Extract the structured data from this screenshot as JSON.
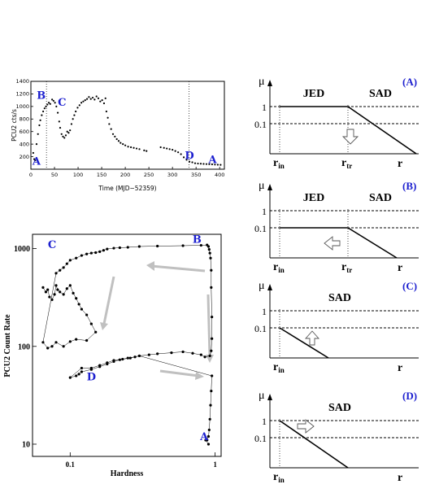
{
  "charts": [
    {
      "chart_data": {
        "type": "scatter",
        "xlabel": "Time (MJD−52359)",
        "ylabel": "PCU2 cts/s",
        "xlim": [
          0,
          410
        ],
        "ylim": [
          0,
          1400
        ],
        "xticks": [
          0,
          50,
          100,
          150,
          200,
          250,
          300,
          350,
          400
        ],
        "yticks": [
          200,
          400,
          600,
          800,
          1000,
          1200,
          1400
        ],
        "grid": false,
        "points": [
          [
            5,
            260
          ],
          [
            7,
            160
          ],
          [
            9,
            140
          ],
          [
            12,
            400
          ],
          [
            15,
            560
          ],
          [
            18,
            700
          ],
          [
            20,
            780
          ],
          [
            23,
            860
          ],
          [
            26,
            920
          ],
          [
            29,
            970
          ],
          [
            32,
            1000
          ],
          [
            35,
            1030
          ],
          [
            38,
            1060
          ],
          [
            41,
            1040
          ],
          [
            45,
            1110
          ],
          [
            48,
            1090
          ],
          [
            51,
            1060
          ],
          [
            54,
            1000
          ],
          [
            57,
            900
          ],
          [
            60,
            760
          ],
          [
            62,
            660
          ],
          [
            65,
            560
          ],
          [
            68,
            520
          ],
          [
            71,
            500
          ],
          [
            74,
            540
          ],
          [
            77,
            600
          ],
          [
            80,
            580
          ],
          [
            83,
            620
          ],
          [
            86,
            720
          ],
          [
            89,
            800
          ],
          [
            92,
            860
          ],
          [
            95,
            920
          ],
          [
            99,
            980
          ],
          [
            103,
            1020
          ],
          [
            107,
            1060
          ],
          [
            111,
            1080
          ],
          [
            115,
            1100
          ],
          [
            119,
            1120
          ],
          [
            123,
            1150
          ],
          [
            127,
            1120
          ],
          [
            131,
            1140
          ],
          [
            135,
            1110
          ],
          [
            139,
            1160
          ],
          [
            143,
            1130
          ],
          [
            147,
            1080
          ],
          [
            151,
            1100
          ],
          [
            155,
            1050
          ],
          [
            158,
            1130
          ],
          [
            160,
            920
          ],
          [
            163,
            820
          ],
          [
            166,
            720
          ],
          [
            170,
            640
          ],
          [
            174,
            560
          ],
          [
            178,
            520
          ],
          [
            182,
            480
          ],
          [
            186,
            450
          ],
          [
            190,
            420
          ],
          [
            195,
            400
          ],
          [
            200,
            380
          ],
          [
            206,
            360
          ],
          [
            212,
            350
          ],
          [
            218,
            340
          ],
          [
            224,
            330
          ],
          [
            230,
            320
          ],
          [
            240,
            300
          ],
          [
            245,
            290
          ],
          [
            275,
            350
          ],
          [
            282,
            340
          ],
          [
            288,
            330
          ],
          [
            294,
            320
          ],
          [
            300,
            310
          ],
          [
            306,
            290
          ],
          [
            312,
            270
          ],
          [
            318,
            240
          ],
          [
            324,
            190
          ],
          [
            330,
            150
          ],
          [
            336,
            120
          ],
          [
            342,
            110
          ],
          [
            348,
            95
          ],
          [
            354,
            90
          ],
          [
            360,
            88
          ],
          [
            366,
            85
          ],
          [
            372,
            82
          ],
          [
            378,
            80
          ],
          [
            384,
            78
          ],
          [
            390,
            74
          ],
          [
            396,
            72
          ],
          [
            402,
            70
          ]
        ],
        "vlines": [
          33,
          335
        ],
        "annotations": [
          {
            "label": "A",
            "x": 12,
            "y": 70
          },
          {
            "label": "B",
            "x": 22,
            "y": 1120
          },
          {
            "label": "C",
            "x": 66,
            "y": 1010
          },
          {
            "label": "D",
            "x": 336,
            "y": 160
          },
          {
            "label": "A",
            "x": 385,
            "y": 95
          }
        ]
      }
    },
    {
      "chart_data": {
        "type": "scatter",
        "xlabel": "Hardness",
        "ylabel": "PCU2 Count Rate",
        "xscale": "log",
        "yscale": "log",
        "xlim": [
          0.055,
          1.1
        ],
        "ylim": [
          7.5,
          1400
        ],
        "yticks": [
          10,
          100,
          1000
        ],
        "xticks": [
          0.1,
          1
        ],
        "points": [
          [
            0.065,
            400
          ],
          [
            0.068,
            360
          ],
          [
            0.07,
            380
          ],
          [
            0.072,
            320
          ],
          [
            0.075,
            300
          ],
          [
            0.078,
            340
          ],
          [
            0.08,
            420
          ],
          [
            0.082,
            380
          ],
          [
            0.085,
            360
          ],
          [
            0.09,
            340
          ],
          [
            0.095,
            390
          ],
          [
            0.1,
            420
          ],
          [
            0.105,
            350
          ],
          [
            0.11,
            310
          ],
          [
            0.115,
            270
          ],
          [
            0.12,
            240
          ],
          [
            0.13,
            210
          ],
          [
            0.14,
            170
          ],
          [
            0.15,
            140
          ],
          [
            0.13,
            115
          ],
          [
            0.11,
            118
          ],
          [
            0.1,
            112
          ],
          [
            0.09,
            100
          ],
          [
            0.08,
            110
          ],
          [
            0.075,
            100
          ],
          [
            0.07,
            96
          ],
          [
            0.065,
            110
          ],
          [
            0.08,
            560
          ],
          [
            0.085,
            600
          ],
          [
            0.09,
            640
          ],
          [
            0.095,
            700
          ],
          [
            0.1,
            760
          ],
          [
            0.11,
            800
          ],
          [
            0.12,
            850
          ],
          [
            0.13,
            880
          ],
          [
            0.14,
            900
          ],
          [
            0.15,
            910
          ],
          [
            0.16,
            930
          ],
          [
            0.17,
            960
          ],
          [
            0.18,
            990
          ],
          [
            0.2,
            1010
          ],
          [
            0.22,
            1020
          ],
          [
            0.25,
            1030
          ],
          [
            0.3,
            1050
          ],
          [
            0.4,
            1060
          ],
          [
            0.6,
            1070
          ],
          [
            0.8,
            1080
          ],
          [
            0.88,
            1090
          ],
          [
            0.9,
            1050
          ],
          [
            0.91,
            980
          ],
          [
            0.92,
            900
          ],
          [
            0.93,
            800
          ],
          [
            0.94,
            600
          ],
          [
            0.94,
            400
          ],
          [
            0.95,
            200
          ],
          [
            0.95,
            120
          ],
          [
            0.94,
            90
          ],
          [
            0.92,
            80
          ],
          [
            0.85,
            78
          ],
          [
            0.8,
            82
          ],
          [
            0.7,
            85
          ],
          [
            0.6,
            88
          ],
          [
            0.5,
            86
          ],
          [
            0.4,
            84
          ],
          [
            0.35,
            82
          ],
          [
            0.3,
            80
          ],
          [
            0.28,
            78
          ],
          [
            0.25,
            76
          ],
          [
            0.22,
            73
          ],
          [
            0.2,
            70
          ],
          [
            0.18,
            66
          ],
          [
            0.16,
            62
          ],
          [
            0.14,
            58
          ],
          [
            0.12,
            55
          ],
          [
            0.115,
            52
          ],
          [
            0.11,
            50
          ],
          [
            0.1,
            48
          ],
          [
            0.12,
            60
          ],
          [
            0.14,
            60
          ],
          [
            0.16,
            64
          ],
          [
            0.18,
            68
          ],
          [
            0.2,
            72
          ],
          [
            0.23,
            74
          ],
          [
            0.26,
            76
          ],
          [
            0.3,
            80
          ],
          [
            0.95,
            50
          ],
          [
            0.94,
            35
          ],
          [
            0.93,
            25
          ],
          [
            0.92,
            18
          ],
          [
            0.91,
            14
          ],
          [
            0.9,
            12
          ],
          [
            0.88,
            11
          ],
          [
            0.86,
            11
          ],
          [
            0.9,
            10
          ]
        ],
        "annotations": [
          {
            "label": "C",
            "x": 0.075,
            "y": 1010
          },
          {
            "label": "B",
            "x": 0.75,
            "y": 1150
          },
          {
            "label": "D",
            "x": 0.14,
            "y": 45
          },
          {
            "label": "A",
            "x": 0.84,
            "y": 11
          }
        ]
      }
    }
  ],
  "schematics": [
    {
      "panel": "(A)",
      "mu": "μ",
      "r": "r",
      "rin": "r",
      "rin_sub": "in",
      "rtr": "r",
      "rtr_sub": "tr",
      "left_label": "JED",
      "right_label": "SAD",
      "one": "1",
      "tenth": "0.1"
    },
    {
      "panel": "(B)",
      "mu": "μ",
      "r": "r",
      "rin": "r",
      "rin_sub": "in",
      "rtr": "r",
      "rtr_sub": "tr",
      "left_label": "JED",
      "right_label": "SAD",
      "one": "1",
      "tenth": "0.1"
    },
    {
      "panel": "(C)",
      "mu": "μ",
      "r": "r",
      "rin": "r",
      "rin_sub": "in",
      "label": "SAD",
      "one": "1",
      "tenth": "0.1"
    },
    {
      "panel": "(D)",
      "mu": "μ",
      "r": "r",
      "rin": "r",
      "rin_sub": "in",
      "label": "SAD",
      "one": "1",
      "tenth": "0.1"
    }
  ],
  "colors": {
    "label_blue": "#1c1fcf",
    "arrow_grey": "#c0c0c0"
  }
}
